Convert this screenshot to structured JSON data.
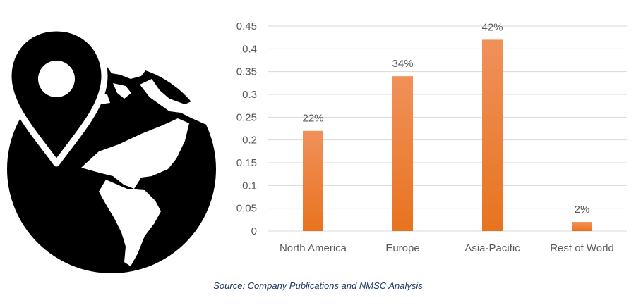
{
  "chart_data": {
    "type": "bar",
    "categories": [
      "North America",
      "Europe",
      "Asia-Pacific",
      "Rest of World"
    ],
    "values": [
      0.22,
      0.34,
      0.42,
      0.02
    ],
    "data_labels": [
      "22%",
      "34%",
      "42%",
      "2%"
    ],
    "ylim": [
      0,
      0.45
    ],
    "yticks": [
      "0",
      "0.05",
      "0.1",
      "0.15",
      "0.2",
      "0.25",
      "0.3",
      "0.35",
      "0.4",
      "0.45"
    ],
    "ytick_values": [
      0,
      0.05,
      0.1,
      0.15,
      0.2,
      0.25,
      0.3,
      0.35,
      0.4,
      0.45
    ],
    "grid": true,
    "colors": {
      "bar_top": "#f0915a",
      "bar_bottom": "#e8731f",
      "grid": "#d9d9d9",
      "text": "#595959"
    }
  },
  "icon": "globe-location-pin-icon",
  "source_text": "Source: Company Publications and NMSC Analysis"
}
